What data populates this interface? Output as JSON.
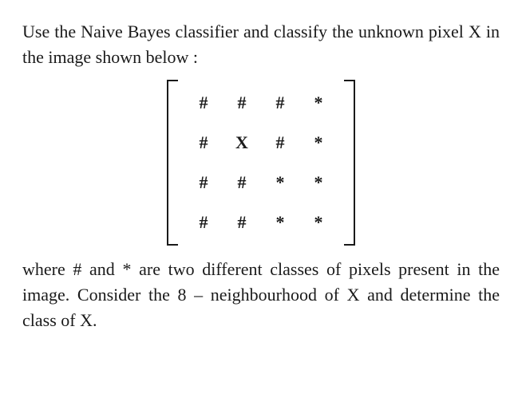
{
  "intro": "Use the Naive Bayes classifier and classify the unknown pixel X in the image shown below :",
  "matrix": {
    "rows": 4,
    "cols": 4,
    "cells": [
      [
        "#",
        "#",
        "#",
        "*"
      ],
      [
        "#",
        "X",
        "#",
        "*"
      ],
      [
        "#",
        "#",
        "*",
        "*"
      ],
      [
        "#",
        "#",
        "*",
        "*"
      ]
    ]
  },
  "followup": "where # and * are two different classes of pixels present in the image. Consider the 8 – neighbourhood of X and determine the class of X."
}
